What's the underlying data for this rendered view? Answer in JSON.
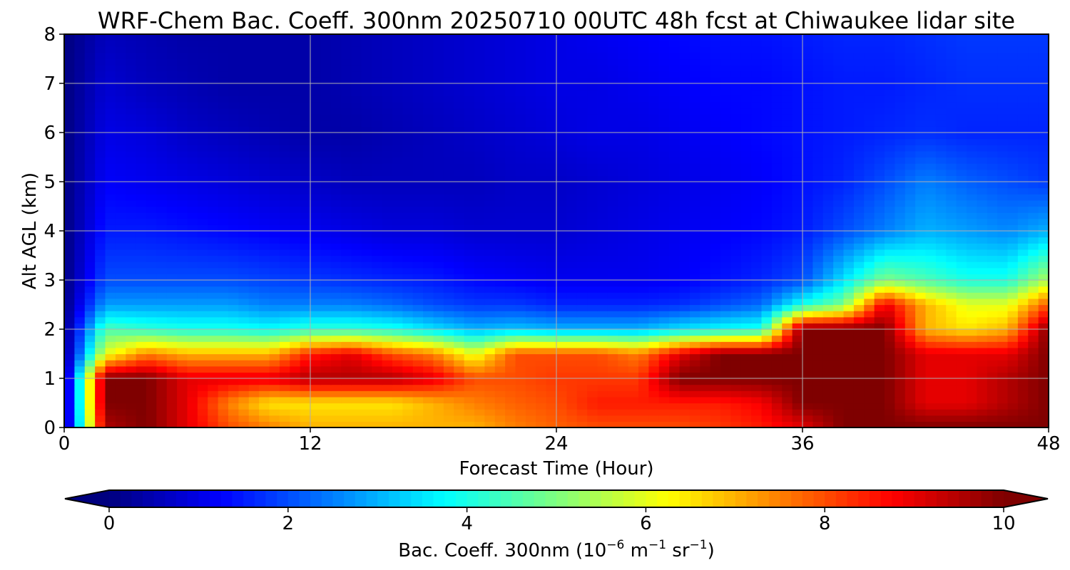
{
  "title": "WRF-Chem Bac. Coeff. 300nm  20250710 00UTC 48h fcst at Chiwaukee lidar site",
  "colors": {
    "jet": [
      "#00007f",
      "#0000ff",
      "#007fff",
      "#00ffff",
      "#7fff7f",
      "#ffff00",
      "#ff7f00",
      "#ff0000",
      "#7f0000"
    ],
    "grid": "#b0b0b0",
    "frame": "#000000"
  },
  "chart_data": {
    "type": "heatmap",
    "x": [
      0,
      2,
      4,
      6,
      8,
      10,
      12,
      14,
      16,
      18,
      20,
      22,
      24,
      26,
      28,
      30,
      32,
      34,
      36,
      38,
      40,
      42,
      44,
      46,
      48
    ],
    "y": [
      0,
      0.5,
      1,
      1.5,
      2,
      2.5,
      3,
      4,
      5,
      6,
      7,
      8
    ],
    "z": [
      [
        0,
        9.5,
        10,
        9,
        8,
        7.5,
        7,
        7,
        7,
        7,
        7,
        7.5,
        7.8,
        8,
        8,
        8,
        8.2,
        8.5,
        9,
        10,
        10,
        10,
        10,
        10,
        10
      ],
      [
        0,
        10,
        10,
        9,
        7.5,
        6.5,
        6.5,
        6.5,
        6.5,
        7,
        7.5,
        7.8,
        8,
        8.5,
        8.5,
        8.5,
        8.5,
        8.8,
        10,
        10,
        10,
        9,
        9,
        9.5,
        10
      ],
      [
        0,
        10,
        10,
        9,
        9,
        9,
        9.5,
        9.5,
        9.5,
        9,
        8,
        8,
        8.2,
        8.2,
        8.2,
        10,
        10,
        10,
        10,
        10,
        10,
        9,
        9,
        9.5,
        10
      ],
      [
        0,
        6,
        7.5,
        7,
        7,
        7,
        8.5,
        9,
        8,
        7.5,
        6,
        8,
        8,
        8,
        7.5,
        9,
        10,
        10,
        10,
        10,
        10,
        9,
        9,
        9,
        10
      ],
      [
        0,
        4.5,
        4.2,
        4,
        4,
        3.8,
        4.2,
        4.2,
        4,
        3.5,
        3,
        3.2,
        3,
        3,
        3,
        3.5,
        3.8,
        4,
        10,
        10,
        10,
        7,
        6.5,
        7,
        10
      ],
      [
        0,
        2.8,
        2.8,
        2.8,
        2.8,
        2.5,
        2.5,
        2.5,
        2.3,
        2,
        1.8,
        1.8,
        1.6,
        1.6,
        1.6,
        1.7,
        2,
        2.3,
        4,
        5,
        9,
        7,
        6,
        6,
        8
      ],
      [
        0,
        2,
        2,
        2,
        2,
        1.9,
        1.8,
        1.7,
        1.6,
        1.5,
        1.3,
        1.2,
        1.1,
        1.1,
        1.1,
        1.2,
        1.4,
        1.6,
        2,
        3.5,
        5,
        4.5,
        4,
        4,
        5.5
      ],
      [
        0,
        1.5,
        1.5,
        1.4,
        1.3,
        1.2,
        1.1,
        1,
        0.9,
        0.9,
        0.8,
        0.8,
        0.8,
        0.9,
        1,
        1.1,
        1.2,
        1.3,
        1.5,
        2,
        2.5,
        3,
        2.8,
        2.6,
        3
      ],
      [
        0,
        1.2,
        1.1,
        1,
        0.9,
        0.8,
        0.7,
        0.6,
        0.6,
        0.6,
        0.6,
        0.7,
        0.7,
        0.8,
        0.9,
        1,
        1.1,
        1.2,
        1.4,
        1.6,
        2,
        2.5,
        2.2,
        2,
        1.8
      ],
      [
        0,
        1,
        0.9,
        0.7,
        0.6,
        0.5,
        0.4,
        0.4,
        0.5,
        0.6,
        0.7,
        0.8,
        0.9,
        1,
        1,
        1.1,
        1.2,
        1.3,
        1.4,
        1.5,
        1.6,
        1.7,
        1.6,
        1.6,
        1.6
      ],
      [
        0,
        0.8,
        0.6,
        0.5,
        0.4,
        0.4,
        0.4,
        0.5,
        0.6,
        0.7,
        0.8,
        0.9,
        1,
        1,
        1.1,
        1.2,
        1.3,
        1.3,
        1.4,
        1.5,
        1.5,
        1.6,
        1.7,
        1.7,
        1.7
      ],
      [
        0,
        0.6,
        0.5,
        0.4,
        0.4,
        0.4,
        0.4,
        0.5,
        0.6,
        0.7,
        0.8,
        0.9,
        1,
        1.1,
        1.2,
        1.3,
        1.4,
        1.4,
        1.5,
        1.6,
        1.6,
        1.7,
        1.8,
        1.8,
        1.8
      ]
    ],
    "xlabel": "Forecast Time (Hour)",
    "ylabel": "Alt AGL (km)",
    "xlim": [
      0,
      48
    ],
    "ylim": [
      0,
      8
    ],
    "xticks": [
      0,
      12,
      24,
      36,
      48
    ],
    "yticks": [
      0,
      1,
      2,
      3,
      4,
      5,
      6,
      7,
      8
    ],
    "xtick_labels": [
      "0",
      "12",
      "24",
      "36",
      "48"
    ],
    "ytick_labels": [
      "0",
      "1",
      "2",
      "3",
      "4",
      "5",
      "6",
      "7",
      "8"
    ],
    "grid": true,
    "colorbar": {
      "orientation": "horizontal",
      "position": "bottom",
      "colormap": "jet",
      "range": [
        0,
        10
      ],
      "ticks": [
        0,
        2,
        4,
        6,
        8,
        10
      ],
      "tick_labels": [
        "0",
        "2",
        "4",
        "6",
        "8",
        "10"
      ],
      "extend": "both",
      "label_main": "Bac. Coeff. 300nm  (10",
      "label_exp1": "−6",
      "label_mid": " m",
      "label_exp2": "−1",
      "label_mid2": " sr",
      "label_exp3": "−1",
      "label_end": ")"
    }
  }
}
